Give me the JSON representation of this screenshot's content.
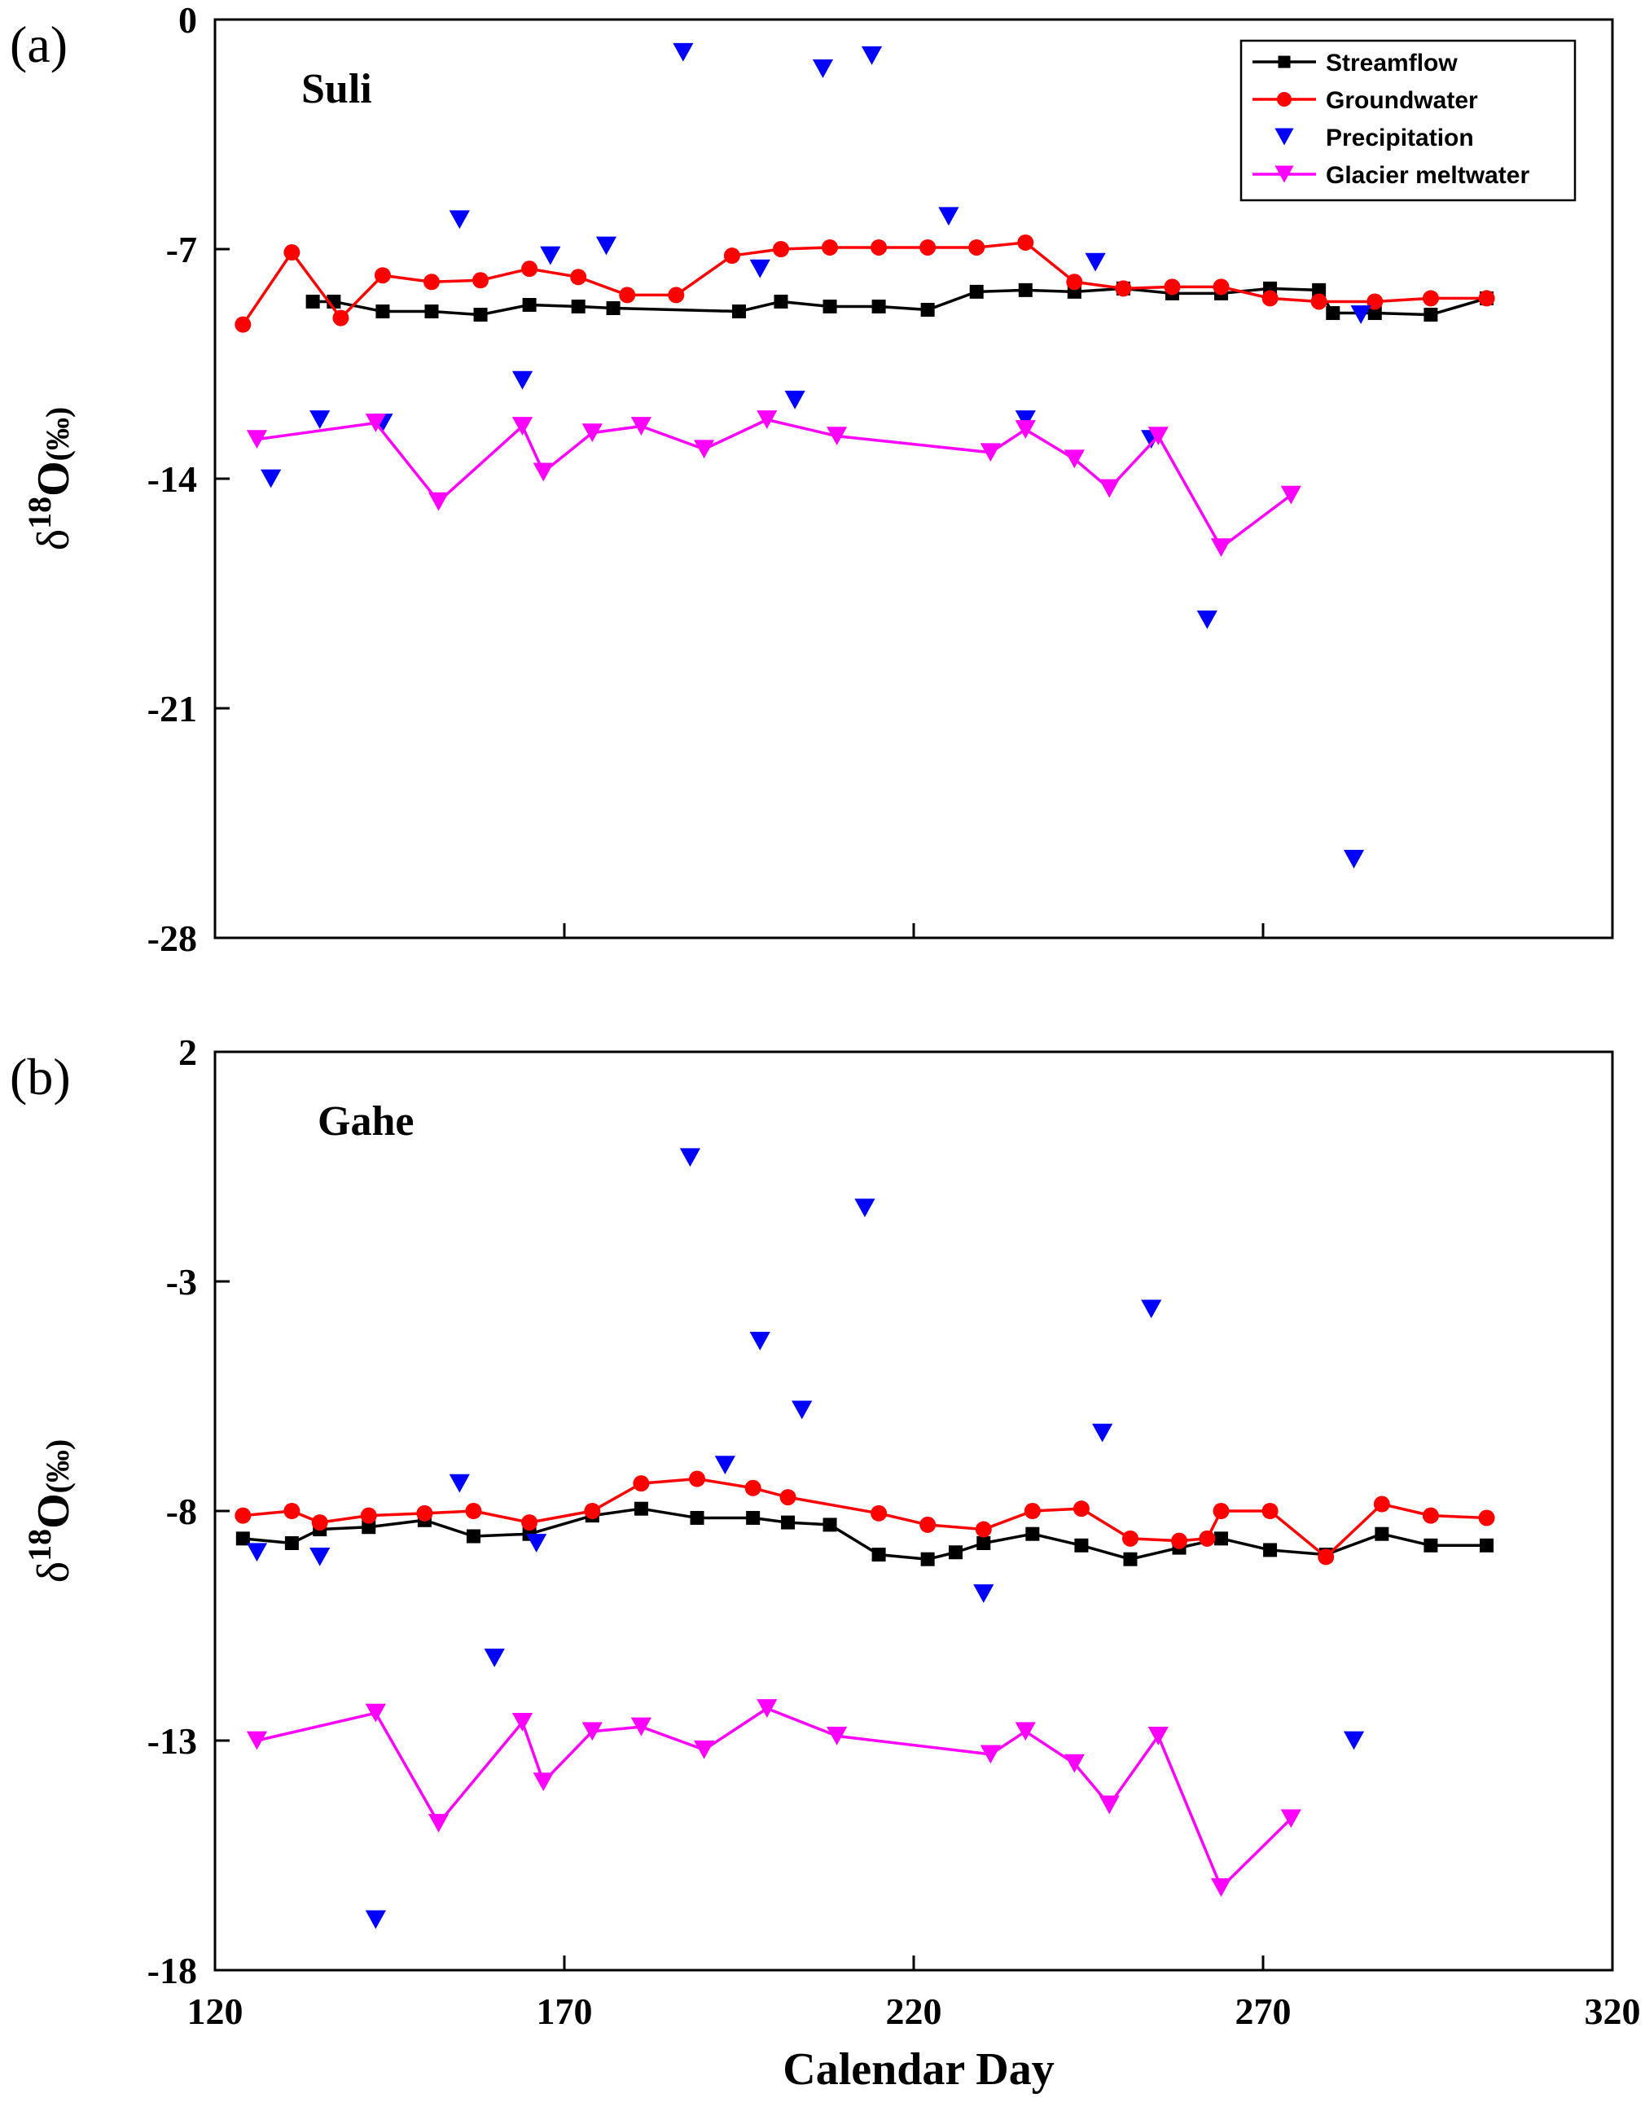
{
  "chart_data": [
    {
      "type": "line",
      "panel_label": "(a)",
      "site": "Suli",
      "xlabel": "Calendar Day",
      "ylabel": "δ18O(‰)",
      "xlim": [
        120,
        320
      ],
      "ylim": [
        -28,
        0
      ],
      "xticks": [
        120,
        170,
        220,
        270,
        320
      ],
      "yticks": [
        0,
        -7,
        -14,
        -21,
        -28
      ],
      "legend": {
        "position": "top-right",
        "entries": [
          "Streamflow",
          "Groundwater",
          "Precipitation",
          "Glacier meltwater"
        ]
      },
      "series": [
        {
          "name": "Streamflow",
          "color": "#000000",
          "marker": "square",
          "line": true,
          "x": [
            134,
            137,
            144,
            151,
            158,
            165,
            172,
            177,
            195,
            201,
            208,
            215,
            222,
            229,
            236,
            243,
            250,
            257,
            264,
            271,
            278,
            280,
            286,
            294,
            302
          ],
          "y": [
            -8.6,
            -8.6,
            -8.9,
            -8.9,
            -9.0,
            -8.7,
            -8.75,
            -8.8,
            -8.9,
            -8.6,
            -8.75,
            -8.75,
            -8.85,
            -8.3,
            -8.25,
            -8.3,
            -8.2,
            -8.35,
            -8.35,
            -8.2,
            -8.25,
            -8.95,
            -8.95,
            -9.0,
            -8.5
          ]
        },
        {
          "name": "Groundwater",
          "color": "#ff0000",
          "marker": "circle",
          "line": true,
          "x": [
            124,
            131,
            138,
            144,
            151,
            158,
            165,
            172,
            179,
            186,
            194,
            201,
            208,
            215,
            222,
            229,
            236,
            243,
            250,
            257,
            264,
            271,
            278,
            286,
            294,
            302
          ],
          "y": [
            -9.3,
            -7.1,
            -9.1,
            -7.8,
            -8.0,
            -7.95,
            -7.6,
            -7.85,
            -8.4,
            -8.4,
            -7.2,
            -7.0,
            -6.95,
            -6.95,
            -6.95,
            -6.95,
            -6.8,
            -8.0,
            -8.2,
            -8.15,
            -8.15,
            -8.5,
            -8.6,
            -8.6,
            -8.5,
            -8.5
          ]
        },
        {
          "name": "Precipitation",
          "color": "#0000ff",
          "marker": "triangle-down",
          "line": false,
          "x": [
            128,
            135,
            144,
            155,
            164,
            168,
            176,
            187,
            198,
            203,
            207,
            214,
            225,
            236,
            246,
            254,
            262,
            283,
            284
          ],
          "y": [
            -14.0,
            -12.2,
            -12.3,
            -6.1,
            -11.0,
            -7.2,
            -6.9,
            -1.0,
            -7.6,
            -11.6,
            -1.5,
            -1.1,
            -6.0,
            -12.2,
            -7.4,
            -12.8,
            -18.3,
            -25.6,
            -9.0
          ]
        },
        {
          "name": "Glacier meltwater",
          "color": "#ff00ff",
          "marker": "triangle-down",
          "line": true,
          "x": [
            126,
            143,
            152,
            164,
            167,
            174,
            181,
            190,
            199,
            209,
            231,
            236,
            243,
            248,
            255,
            264,
            274
          ],
          "y": [
            -12.8,
            -12.3,
            -14.7,
            -12.4,
            -13.8,
            -12.6,
            -12.4,
            -13.1,
            -12.2,
            -12.7,
            -13.2,
            -12.5,
            -13.4,
            -14.3,
            -12.7,
            -16.1,
            -14.5
          ]
        }
      ]
    },
    {
      "type": "line",
      "panel_label": "(b)",
      "site": "Gahe",
      "xlabel": "Calendar Day",
      "ylabel": "δ18O(‰)",
      "xlim": [
        120,
        320
      ],
      "ylim": [
        -18,
        2
      ],
      "xticks": [
        120,
        170,
        220,
        270,
        320
      ],
      "yticks": [
        2,
        -3,
        -8,
        -13,
        -18
      ],
      "series": [
        {
          "name": "Streamflow",
          "color": "#000000",
          "marker": "square",
          "line": true,
          "x": [
            124,
            131,
            135,
            142,
            150,
            157,
            165,
            174,
            181,
            189,
            197,
            202,
            208,
            215,
            222,
            226,
            230,
            237,
            244,
            251,
            258,
            264,
            271,
            279,
            287,
            294,
            302
          ],
          "y": [
            -8.6,
            -8.7,
            -8.4,
            -8.35,
            -8.2,
            -8.55,
            -8.5,
            -8.1,
            -7.95,
            -8.15,
            -8.15,
            -8.25,
            -8.3,
            -8.95,
            -9.05,
            -8.9,
            -8.7,
            -8.5,
            -8.75,
            -9.05,
            -8.8,
            -8.6,
            -8.85,
            -8.95,
            -8.5,
            -8.75,
            -8.75
          ]
        },
        {
          "name": "Groundwater",
          "color": "#ff0000",
          "marker": "circle",
          "line": true,
          "x": [
            124,
            131,
            135,
            142,
            150,
            157,
            165,
            174,
            181,
            189,
            197,
            202,
            215,
            222,
            230,
            237,
            244,
            251,
            258,
            262,
            264,
            271,
            279,
            287,
            294,
            302
          ],
          "y": [
            -8.1,
            -8.0,
            -8.25,
            -8.1,
            -8.05,
            -8.0,
            -8.25,
            -8.0,
            -7.4,
            -7.3,
            -7.5,
            -7.7,
            -8.05,
            -8.3,
            -8.4,
            -8.0,
            -7.95,
            -8.6,
            -8.65,
            -8.6,
            -8.0,
            -8.0,
            -9.0,
            -7.85,
            -8.1,
            -8.15
          ]
        },
        {
          "name": "Precipitation",
          "color": "#0000ff",
          "marker": "triangle-down",
          "line": false,
          "x": [
            126,
            135,
            143,
            155,
            160,
            166,
            188,
            193,
            198,
            204,
            213,
            230,
            247,
            254,
            283
          ],
          "y": [
            -8.9,
            -9.0,
            -16.9,
            -7.4,
            -11.2,
            -8.7,
            -0.3,
            -7.0,
            -4.3,
            -5.8,
            -1.4,
            -9.8,
            -6.3,
            -3.6,
            -13.0
          ]
        },
        {
          "name": "Glacier meltwater",
          "color": "#ff00ff",
          "marker": "triangle-down",
          "line": true,
          "x": [
            126,
            143,
            152,
            164,
            167,
            174,
            181,
            190,
            199,
            209,
            231,
            236,
            243,
            248,
            255,
            264,
            274
          ],
          "y": [
            -13.0,
            -12.4,
            -14.8,
            -12.6,
            -13.9,
            -12.8,
            -12.7,
            -13.2,
            -12.3,
            -12.9,
            -13.3,
            -12.8,
            -13.5,
            -14.4,
            -12.9,
            -16.2,
            -14.7
          ]
        }
      ]
    }
  ]
}
